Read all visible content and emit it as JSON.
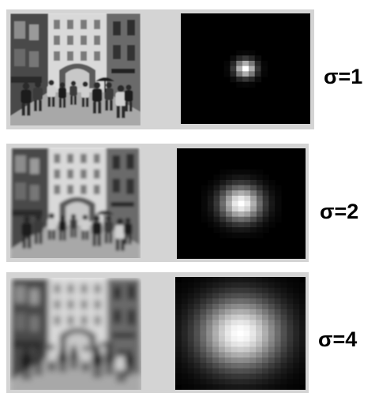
{
  "rows": [
    {
      "sigma_label": "σ=1",
      "sigma": 1
    },
    {
      "sigma_label": "σ=2",
      "sigma": 2
    },
    {
      "sigma_label": "σ=4",
      "sigma": 4
    }
  ],
  "colors": {
    "panel_background": "#d4d4d4",
    "kernel_background": "#000000",
    "kernel_peak": "#ffffff"
  }
}
